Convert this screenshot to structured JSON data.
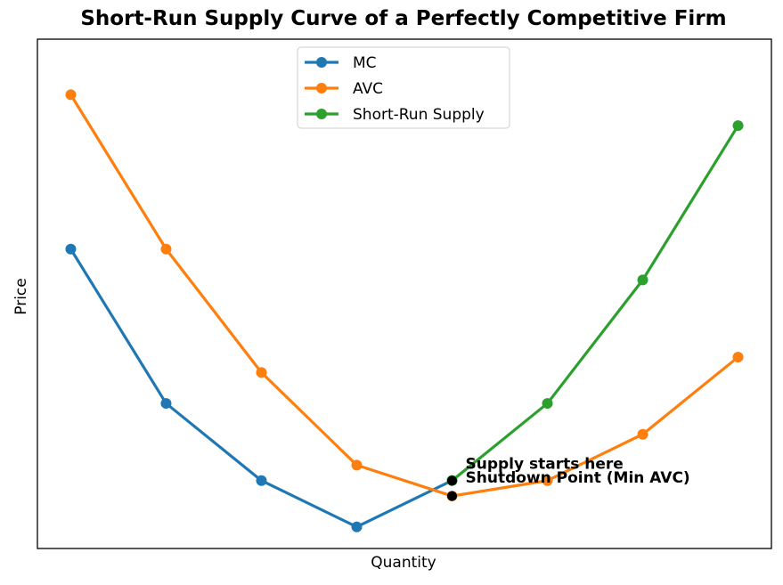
{
  "chart_data": {
    "type": "line",
    "title": "Short-Run Supply Curve of a Perfectly Competitive Firm",
    "xlabel": "Quantity",
    "ylabel": "Price",
    "x": [
      1,
      2,
      3,
      4,
      5,
      6,
      7,
      8
    ],
    "xlim": [
      0.65,
      8.35
    ],
    "ylim": [
      0.3,
      16.8
    ],
    "grid": false,
    "legend_position": "top-center",
    "series": [
      {
        "name": "MC",
        "color": "#1f77b4",
        "x": [
          1,
          2,
          3,
          4,
          5
        ],
        "values": [
          10,
          5,
          2.5,
          1,
          2.5
        ]
      },
      {
        "name": "AVC",
        "color": "#ff7f0e",
        "x": [
          1,
          2,
          3,
          4,
          5,
          6,
          7,
          8
        ],
        "values": [
          15,
          10,
          6,
          3,
          2,
          2.5,
          4,
          6.5
        ]
      },
      {
        "name": "Short-Run Supply",
        "color": "#2ca02c",
        "x": [
          5,
          6,
          7,
          8
        ],
        "values": [
          2.5,
          5,
          9,
          14
        ]
      }
    ],
    "annotations": [
      {
        "text": "Supply starts here",
        "x": 5,
        "y": 2.5
      },
      {
        "text": "Shutdown Point (Min AVC)",
        "x": 5,
        "y": 2
      }
    ]
  }
}
